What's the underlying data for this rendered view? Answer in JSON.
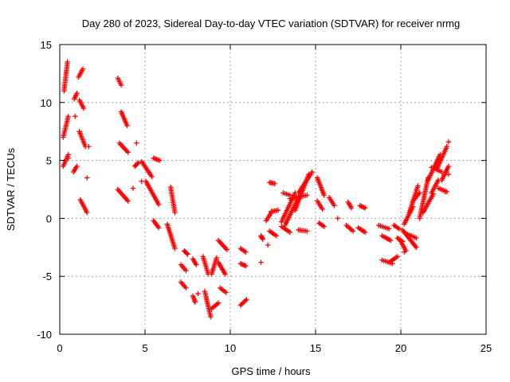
{
  "chart_data": {
    "type": "scatter",
    "title": "Day 280 of 2023, Sidereal Day-to-day VTEC variation (SDTVAR) for receiver nrmg",
    "xlabel": "GPS time / hours",
    "ylabel": "SDTVAR / TECUs",
    "xlim": [
      0,
      25
    ],
    "ylim": [
      -10,
      15
    ],
    "x_ticks": [
      0,
      5,
      10,
      15,
      20,
      25
    ],
    "y_ticks": [
      -10,
      -5,
      0,
      5,
      10,
      15
    ],
    "x_tick_labels": [
      "0",
      "5",
      "10",
      "15",
      "20",
      "25"
    ],
    "y_tick_labels": [
      "-10",
      "-5",
      "0",
      "5",
      "10",
      "15"
    ],
    "grid": true,
    "marker": "+",
    "color": "#ff0000",
    "segments": [
      {
        "x0": 0.25,
        "x1": 0.45,
        "y0": 11.0,
        "y1": 13.5
      },
      {
        "x0": 0.2,
        "x1": 0.5,
        "y0": 7.0,
        "y1": 8.8
      },
      {
        "x0": 0.2,
        "x1": 0.5,
        "y0": 4.5,
        "y1": 5.5
      },
      {
        "x0": 0.85,
        "x1": 1.0,
        "y0": 10.3,
        "y1": 10.8
      },
      {
        "x0": 0.8,
        "x1": 1.0,
        "y0": 4.0,
        "y1": 4.5
      },
      {
        "x0": 1.1,
        "x1": 1.35,
        "y0": 12.2,
        "y1": 12.9
      },
      {
        "x0": 1.15,
        "x1": 1.4,
        "y0": 10.2,
        "y1": 9.5
      },
      {
        "x0": 1.15,
        "x1": 1.5,
        "y0": 7.5,
        "y1": 6.2
      },
      {
        "x0": 1.2,
        "x1": 1.6,
        "y0": 1.6,
        "y1": 0.5
      },
      {
        "x0": 3.4,
        "x1": 3.6,
        "y0": 12.1,
        "y1": 11.5
      },
      {
        "x0": 3.5,
        "x1": 4.0,
        "y0": 6.5,
        "y1": 5.7
      },
      {
        "x0": 3.6,
        "x1": 3.95,
        "y0": 9.2,
        "y1": 8.0
      },
      {
        "x0": 3.4,
        "x1": 4.0,
        "y0": 2.5,
        "y1": 1.5
      },
      {
        "x0": 4.4,
        "x1": 4.6,
        "y0": 4.5,
        "y1": 4.8
      },
      {
        "x0": 4.8,
        "x1": 5.4,
        "y0": 4.9,
        "y1": 3.6
      },
      {
        "x0": 5.05,
        "x1": 5.8,
        "y0": 3.2,
        "y1": 1.2
      },
      {
        "x0": 5.5,
        "x1": 5.85,
        "y0": 5.2,
        "y1": 5.0
      },
      {
        "x0": 5.5,
        "x1": 5.8,
        "y0": -0.2,
        "y1": -0.8
      },
      {
        "x0": 6.3,
        "x1": 6.75,
        "y0": -0.5,
        "y1": -2.6
      },
      {
        "x0": 6.5,
        "x1": 6.75,
        "y0": 2.7,
        "y1": 0.5
      },
      {
        "x0": 7.1,
        "x1": 7.4,
        "y0": -4.0,
        "y1": -4.5
      },
      {
        "x0": 7.3,
        "x1": 7.5,
        "y0": -2.8,
        "y1": -3.1
      },
      {
        "x0": 7.1,
        "x1": 7.4,
        "y0": -5.5,
        "y1": -6.0
      },
      {
        "x0": 7.8,
        "x1": 7.95,
        "y0": -6.7,
        "y1": -7.2
      },
      {
        "x0": 7.8,
        "x1": 8.0,
        "y0": -3.5,
        "y1": -4.0
      },
      {
        "x0": 8.4,
        "x1": 8.7,
        "y0": -3.3,
        "y1": -4.8
      },
      {
        "x0": 8.5,
        "x1": 8.85,
        "y0": -6.3,
        "y1": -8.5
      },
      {
        "x0": 8.9,
        "x1": 9.2,
        "y0": -4.8,
        "y1": -3.4
      },
      {
        "x0": 8.9,
        "x1": 9.3,
        "y0": -7.8,
        "y1": -7.3
      },
      {
        "x0": 9.3,
        "x1": 9.8,
        "y0": -1.9,
        "y1": -2.7
      },
      {
        "x0": 9.3,
        "x1": 9.7,
        "y0": -3.8,
        "y1": -4.8
      },
      {
        "x0": 9.4,
        "x1": 9.75,
        "y0": -6.0,
        "y1": -6.4
      },
      {
        "x0": 10.6,
        "x1": 10.9,
        "y0": -2.6,
        "y1": -2.9
      },
      {
        "x0": 10.6,
        "x1": 10.9,
        "y0": -3.9,
        "y1": -4.1
      },
      {
        "x0": 10.6,
        "x1": 10.95,
        "y0": -7.5,
        "y1": -7.0
      },
      {
        "x0": 11.8,
        "x1": 11.9,
        "y0": -1.5,
        "y1": -1.8
      },
      {
        "x0": 12.1,
        "x1": 12.4,
        "y0": -0.2,
        "y1": 0.5
      },
      {
        "x0": 12.3,
        "x1": 12.6,
        "y0": 3.1,
        "y1": 3.0
      },
      {
        "x0": 12.3,
        "x1": 12.7,
        "y0": -1.1,
        "y1": -1.5
      },
      {
        "x0": 12.4,
        "x1": 12.8,
        "y0": 0.6,
        "y1": 0.7
      },
      {
        "x0": 13.0,
        "x1": 13.8,
        "y0": -0.3,
        "y1": 2.2
      },
      {
        "x0": 13.2,
        "x1": 14.0,
        "y0": -0.6,
        "y1": 1.8
      },
      {
        "x0": 13.1,
        "x1": 13.5,
        "y0": 2.2,
        "y1": 2.0
      },
      {
        "x0": 13.0,
        "x1": 13.5,
        "y0": -0.7,
        "y1": -1.2
      },
      {
        "x0": 13.8,
        "x1": 14.6,
        "y0": 0.7,
        "y1": 3.8
      },
      {
        "x0": 13.5,
        "x1": 14.5,
        "y0": 1.7,
        "y1": 2.0
      },
      {
        "x0": 14.0,
        "x1": 14.8,
        "y0": 2.2,
        "y1": 4.0
      },
      {
        "x0": 14.0,
        "x1": 14.5,
        "y0": -1.0,
        "y1": -1.1
      },
      {
        "x0": 15.1,
        "x1": 15.5,
        "y0": 3.5,
        "y1": 2.0
      },
      {
        "x0": 15.1,
        "x1": 15.4,
        "y0": 1.5,
        "y1": 0.8
      },
      {
        "x0": 15.2,
        "x1": 15.5,
        "y0": -0.4,
        "y1": -0.7
      },
      {
        "x0": 15.8,
        "x1": 16.1,
        "y0": 1.8,
        "y1": 1.1
      },
      {
        "x0": 16.9,
        "x1": 17.1,
        "y0": 1.4,
        "y1": 0.9
      },
      {
        "x0": 16.8,
        "x1": 17.2,
        "y0": -0.6,
        "y1": -1.1
      },
      {
        "x0": 17.5,
        "x1": 17.9,
        "y0": -0.8,
        "y1": -1.2
      },
      {
        "x0": 17.6,
        "x1": 17.9,
        "y0": 1.1,
        "y1": 0.9
      },
      {
        "x0": 18.7,
        "x1": 19.3,
        "y0": -0.6,
        "y1": -0.9
      },
      {
        "x0": 18.9,
        "x1": 19.4,
        "y0": -1.5,
        "y1": -1.9
      },
      {
        "x0": 18.9,
        "x1": 19.5,
        "y0": -3.6,
        "y1": -3.9
      },
      {
        "x0": 19.4,
        "x1": 19.8,
        "y0": -3.7,
        "y1": -3.3
      },
      {
        "x0": 19.6,
        "x1": 19.9,
        "y0": -0.6,
        "y1": -0.9
      },
      {
        "x0": 19.8,
        "x1": 20.1,
        "y0": -1.7,
        "y1": -2.0
      },
      {
        "x0": 20.0,
        "x1": 20.3,
        "y0": -2.0,
        "y1": -2.8
      },
      {
        "x0": 20.1,
        "x1": 20.9,
        "y0": -1.0,
        "y1": -2.5
      },
      {
        "x0": 20.3,
        "x1": 20.9,
        "y0": -1.3,
        "y1": -1.7
      },
      {
        "x0": 20.2,
        "x1": 20.7,
        "y0": -0.5,
        "y1": 1.0
      },
      {
        "x0": 20.5,
        "x1": 21.0,
        "y0": 0.5,
        "y1": 2.8
      },
      {
        "x0": 20.7,
        "x1": 21.1,
        "y0": 1.5,
        "y1": 2.2
      },
      {
        "x0": 21.1,
        "x1": 21.6,
        "y0": 0.0,
        "y1": 3.5
      },
      {
        "x0": 21.3,
        "x1": 21.9,
        "y0": 0.5,
        "y1": 2.1
      },
      {
        "x0": 21.6,
        "x1": 22.3,
        "y0": 3.3,
        "y1": 5.5
      },
      {
        "x0": 21.8,
        "x1": 22.2,
        "y0": 2.2,
        "y1": 3.3
      },
      {
        "x0": 21.8,
        "x1": 22.4,
        "y0": 4.4,
        "y1": 4.0
      },
      {
        "x0": 22.1,
        "x1": 22.7,
        "y0": 4.2,
        "y1": 6.2
      },
      {
        "x0": 22.2,
        "x1": 22.7,
        "y0": 2.6,
        "y1": 2.3
      },
      {
        "x0": 22.4,
        "x1": 22.8,
        "y0": 3.3,
        "y1": 4.5
      }
    ],
    "points": [
      {
        "x": 0.9,
        "y": 8.8
      },
      {
        "x": 1.6,
        "y": 3.5
      },
      {
        "x": 1.7,
        "y": 6.2
      },
      {
        "x": 0.5,
        "y": 5.2
      },
      {
        "x": 4.5,
        "y": 6.5
      },
      {
        "x": 4.3,
        "y": 2.6
      },
      {
        "x": 4.8,
        "y": 3.2
      },
      {
        "x": 7.9,
        "y": -7.2
      },
      {
        "x": 8.1,
        "y": -6.5
      },
      {
        "x": 11.8,
        "y": -3.8
      },
      {
        "x": 12.2,
        "y": -2.3
      },
      {
        "x": 16.3,
        "y": 0.0
      },
      {
        "x": 20.2,
        "y": -2.9
      },
      {
        "x": 22.8,
        "y": 6.6
      },
      {
        "x": 22.8,
        "y": 3.8
      },
      {
        "x": 22.6,
        "y": 2.3
      }
    ]
  }
}
